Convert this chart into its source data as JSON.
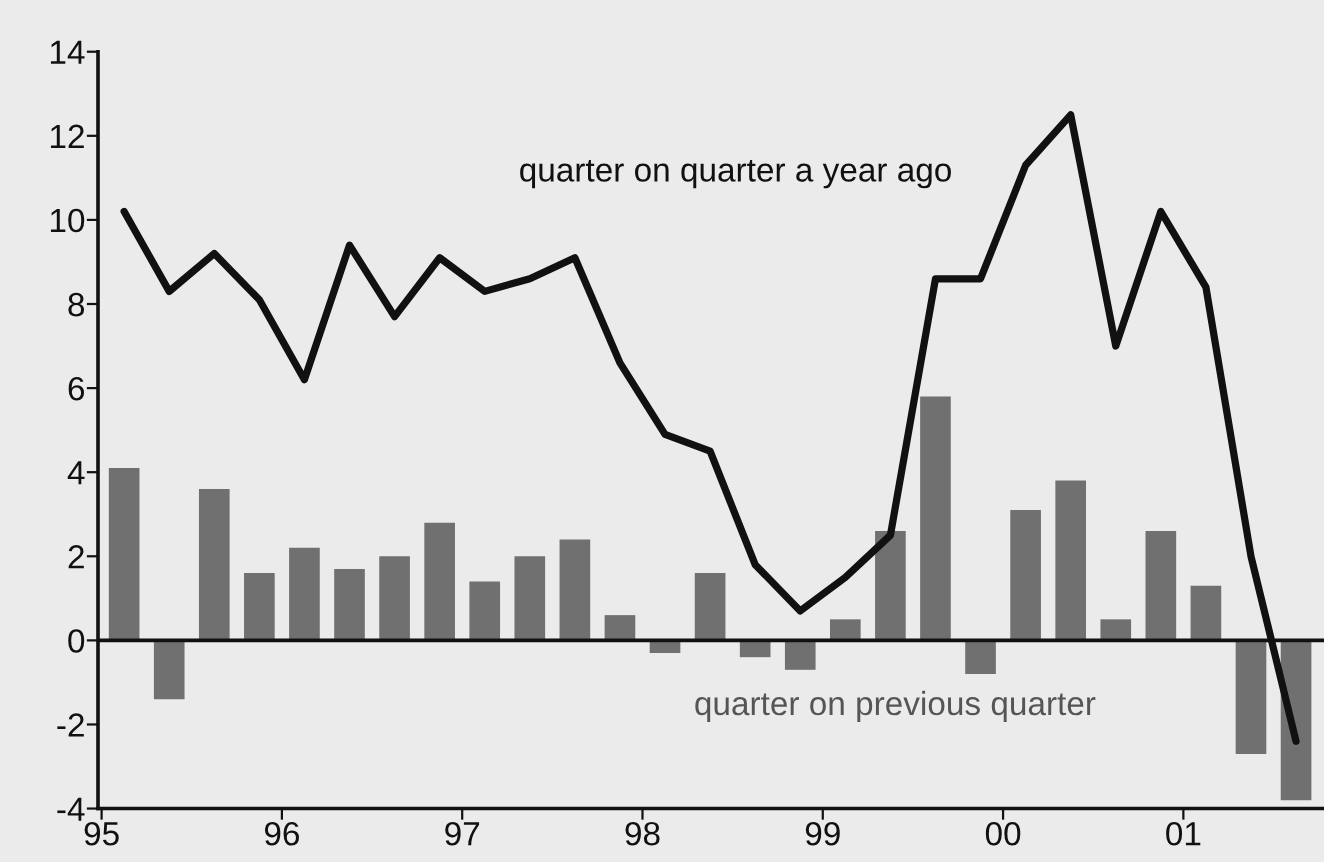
{
  "chart_data": {
    "type": "bar",
    "x": [
      1995.125,
      1995.375,
      1995.625,
      1995.875,
      1996.125,
      1996.375,
      1996.625,
      1996.875,
      1997.125,
      1997.375,
      1997.625,
      1997.875,
      1998.125,
      1998.375,
      1998.625,
      1998.875,
      1999.125,
      1999.375,
      1999.625,
      1999.875,
      2000.125,
      2000.375,
      2000.625,
      2000.875,
      2001.125,
      2001.375,
      2001.625
    ],
    "series": [
      {
        "name": "quarter on quarter a year ago",
        "type": "line",
        "color": "#111111",
        "values": [
          10.2,
          8.3,
          9.2,
          8.1,
          6.2,
          9.4,
          7.7,
          9.1,
          8.3,
          8.6,
          9.1,
          6.6,
          4.9,
          4.5,
          1.8,
          0.7,
          1.5,
          2.5,
          8.6,
          8.6,
          11.3,
          12.5,
          7.0,
          10.2,
          8.4,
          2.0,
          -2.4
        ]
      },
      {
        "name": "quarter on previous quarter",
        "color": "#707070",
        "values": [
          4.1,
          -1.4,
          3.6,
          1.6,
          2.2,
          1.7,
          2.0,
          2.8,
          1.4,
          2.0,
          2.4,
          0.6,
          -0.3,
          1.6,
          -0.4,
          -0.7,
          0.5,
          2.6,
          5.8,
          -0.8,
          3.1,
          3.8,
          0.5,
          2.6,
          1.3,
          -2.7,
          -3.8
        ]
      }
    ],
    "xlim": [
      1994.98,
      2001.78
    ],
    "xticks": [
      {
        "value": 1995,
        "label": "95"
      },
      {
        "value": 1996,
        "label": "96"
      },
      {
        "value": 1997,
        "label": "97"
      },
      {
        "value": 1998,
        "label": "98"
      },
      {
        "value": 1999,
        "label": "99"
      },
      {
        "value": 2000,
        "label": "00"
      },
      {
        "value": 2001,
        "label": "01"
      }
    ],
    "ylim": [
      -4,
      14
    ],
    "yticks": [
      -4,
      -2,
      0,
      2,
      4,
      6,
      8,
      10,
      12,
      14
    ],
    "ref_lines": [
      {
        "axis": "y",
        "value": 0,
        "color": "#111111"
      }
    ],
    "grid": false,
    "legend": false,
    "marker": "none",
    "line_style": "solid"
  }
}
